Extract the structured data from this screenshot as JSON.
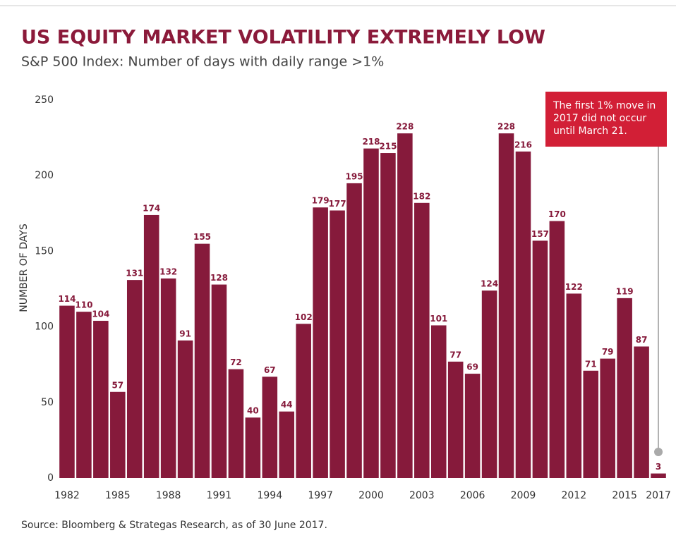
{
  "chart_data": {
    "type": "bar",
    "title": "US EQUITY MARKET VOLATILITY EXTREMELY LOW",
    "subtitle": "S&P 500 Index: Number of days with daily range >1%",
    "y_label": "NUMBER OF DAYS",
    "annotation": [
      "The first 1% move in",
      "2017 did not occur",
      "until March 21."
    ],
    "source": "Source: Bloomberg & Strategas Research, as of 30 June 2017.",
    "categories": [
      "1982",
      null,
      null,
      "1985",
      null,
      null,
      "1988",
      null,
      null,
      "1991",
      null,
      null,
      "1994",
      null,
      null,
      "1997",
      null,
      null,
      "2000",
      null,
      null,
      "2003",
      null,
      null,
      "2006",
      null,
      null,
      "2009",
      null,
      null,
      "2012",
      null,
      null,
      "2015",
      null,
      "2017"
    ],
    "values": [
      114,
      110,
      104,
      57,
      131,
      174,
      132,
      91,
      155,
      128,
      72,
      40,
      67,
      44,
      102,
      179,
      177,
      195,
      218,
      215,
      228,
      182,
      101,
      77,
      69,
      124,
      228,
      216,
      157,
      170,
      122,
      71,
      79,
      119,
      87,
      3
    ],
    "color": "#861a3b",
    "annotation_color": "#d21f36",
    "ylim": [
      0,
      250
    ],
    "yticks": [
      0,
      50,
      100,
      150,
      200,
      250
    ]
  }
}
